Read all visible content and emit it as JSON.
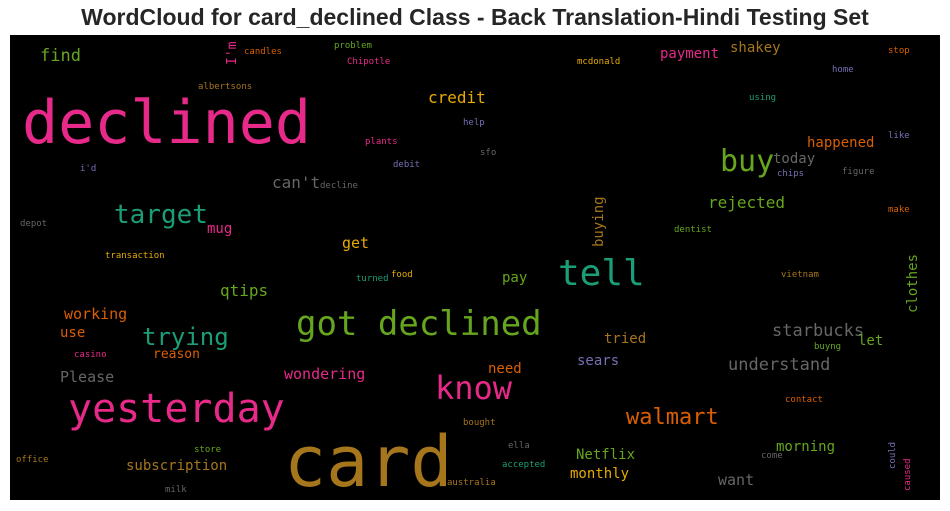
{
  "title": "WordCloud for card_declined Class - Back Translation-Hindi Testing Set",
  "colors": {
    "pink": "#e7298a",
    "green": "#66a61e",
    "teal": "#1b9e77",
    "orange": "#d95f02",
    "gold": "#a6761d",
    "yellow": "#e6ab02",
    "purple": "#7570b3",
    "gray": "#666666"
  },
  "words": [
    {
      "text": "declined",
      "color": "pink"
    },
    {
      "text": "card",
      "color": "gold"
    },
    {
      "text": "got declined",
      "color": "green"
    },
    {
      "text": "yesterday",
      "color": "pink"
    },
    {
      "text": "tell",
      "color": "teal"
    },
    {
      "text": "know",
      "color": "pink"
    },
    {
      "text": "buy",
      "color": "green"
    },
    {
      "text": "target",
      "color": "teal"
    },
    {
      "text": "trying",
      "color": "teal"
    },
    {
      "text": "walmart",
      "color": "orange"
    },
    {
      "text": "understand",
      "color": "gray"
    },
    {
      "text": "starbucks",
      "color": "gray"
    },
    {
      "text": "rejected",
      "color": "green"
    },
    {
      "text": "credit",
      "color": "yellow"
    },
    {
      "text": "can't",
      "color": "gray"
    },
    {
      "text": "qtips",
      "color": "green"
    },
    {
      "text": "wondering",
      "color": "pink"
    },
    {
      "text": "working",
      "color": "orange"
    },
    {
      "text": "Please",
      "color": "gray"
    },
    {
      "text": "find",
      "color": "green"
    },
    {
      "text": "payment",
      "color": "pink"
    },
    {
      "text": "shakey",
      "color": "gold"
    },
    {
      "text": "happened",
      "color": "orange"
    },
    {
      "text": "today",
      "color": "gray"
    },
    {
      "text": "get",
      "color": "yellow"
    },
    {
      "text": "mug",
      "color": "pink"
    },
    {
      "text": "pay",
      "color": "green"
    },
    {
      "text": "need",
      "color": "orange"
    },
    {
      "text": "tried",
      "color": "gold"
    },
    {
      "text": "sears",
      "color": "purple"
    },
    {
      "text": "Netflix",
      "color": "green"
    },
    {
      "text": "morning",
      "color": "green"
    },
    {
      "text": "monthly",
      "color": "yellow"
    },
    {
      "text": "want",
      "color": "gray"
    },
    {
      "text": "subscription",
      "color": "gold"
    },
    {
      "text": "use",
      "color": "orange"
    },
    {
      "text": "reason",
      "color": "orange"
    },
    {
      "text": "let",
      "color": "green"
    },
    {
      "text": "buying",
      "color": "gold"
    },
    {
      "text": "clothes",
      "color": "green"
    },
    {
      "text": "I'm",
      "color": "pink"
    },
    {
      "text": "candles",
      "color": "orange"
    },
    {
      "text": "problem",
      "color": "green"
    },
    {
      "text": "Chipotle",
      "color": "pink"
    },
    {
      "text": "mcdonald",
      "color": "yellow"
    },
    {
      "text": "stop",
      "color": "orange"
    },
    {
      "text": "home",
      "color": "purple"
    },
    {
      "text": "albertsons",
      "color": "gold"
    },
    {
      "text": "using",
      "color": "teal"
    },
    {
      "text": "help",
      "color": "purple"
    },
    {
      "text": "like",
      "color": "purple"
    },
    {
      "text": "plants",
      "color": "pink"
    },
    {
      "text": "sfo",
      "color": "gray"
    },
    {
      "text": "debit",
      "color": "purple"
    },
    {
      "text": "i'd",
      "color": "purple"
    },
    {
      "text": "decline",
      "color": "gray"
    },
    {
      "text": "chips",
      "color": "purple"
    },
    {
      "text": "figure",
      "color": "gray"
    },
    {
      "text": "make",
      "color": "orange"
    },
    {
      "text": "depot",
      "color": "gray"
    },
    {
      "text": "dentist",
      "color": "green"
    },
    {
      "text": "transaction",
      "color": "yellow"
    },
    {
      "text": "turned",
      "color": "teal"
    },
    {
      "text": "food",
      "color": "yellow"
    },
    {
      "text": "vietnam",
      "color": "gold"
    },
    {
      "text": "casino",
      "color": "pink"
    },
    {
      "text": "buyng",
      "color": "green"
    },
    {
      "text": "contact",
      "color": "orange"
    },
    {
      "text": "bought",
      "color": "gold"
    },
    {
      "text": "ella",
      "color": "gray"
    },
    {
      "text": "store",
      "color": "green"
    },
    {
      "text": "office",
      "color": "gold"
    },
    {
      "text": "accepted",
      "color": "teal"
    },
    {
      "text": "come",
      "color": "gray"
    },
    {
      "text": "could",
      "color": "purple"
    },
    {
      "text": "caused",
      "color": "pink"
    },
    {
      "text": "milk",
      "color": "gray"
    },
    {
      "text": "australia",
      "color": "gold"
    }
  ]
}
